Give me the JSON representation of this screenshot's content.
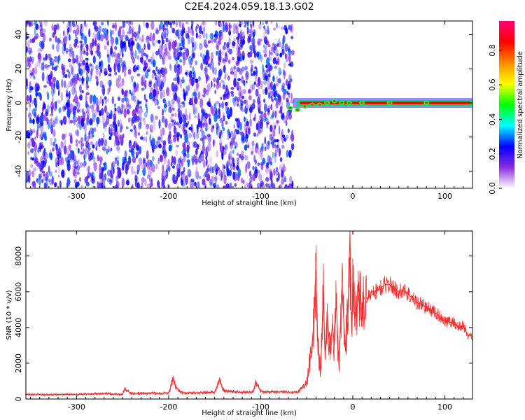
{
  "title": "C2E4.2024.059.18.13.G02",
  "chart_data": [
    {
      "type": "heatmap",
      "panel": "spectrogram",
      "xlabel": "Height of straight line (km)",
      "ylabel": "Frequency (Hz)",
      "xlim": [
        -355,
        130
      ],
      "ylim": [
        -50,
        48
      ],
      "xticks": [
        "-300",
        "-200",
        "-100",
        "0",
        "100"
      ],
      "xtick_values": [
        -300,
        -200,
        -100,
        0,
        100
      ],
      "yticks": [
        "-40",
        "-20",
        "0",
        "20",
        "40"
      ],
      "ytick_values": [
        -40,
        -20,
        0,
        20,
        40
      ],
      "noise_region": {
        "x": [
          -355,
          -65
        ],
        "y": [
          -50,
          48
        ],
        "normalized_amplitude": [
          0.05,
          0.3
        ]
      },
      "signal_band": {
        "x": [
          -65,
          130
        ],
        "center_frequency": 0,
        "normalized_amplitude": 0.85
      },
      "signal_points": [
        {
          "x": -68,
          "y": -3
        },
        {
          "x": -60,
          "y": -4
        },
        {
          "x": -52,
          "y": -2
        },
        {
          "x": -44,
          "y": -1
        },
        {
          "x": -36,
          "y": -1
        },
        {
          "x": -28,
          "y": 0
        },
        {
          "x": -20,
          "y": 1
        },
        {
          "x": -12,
          "y": 0
        },
        {
          "x": -4,
          "y": 0
        },
        {
          "x": 10,
          "y": 0
        },
        {
          "x": 40,
          "y": 0
        },
        {
          "x": 80,
          "y": 0
        },
        {
          "x": 130,
          "y": 0
        }
      ],
      "grid": false,
      "colorbar": {
        "label": "Normalized spectral amplitude",
        "range": [
          0,
          0.97
        ],
        "ticks": [
          "0.0",
          "0.2",
          "0.4",
          "0.6",
          "0.8"
        ],
        "tick_values": [
          0,
          0.2,
          0.4,
          0.6,
          0.8
        ],
        "colors": [
          "#ffffff",
          "#8a2be2",
          "#0000ff",
          "#00ffff",
          "#00ff00",
          "#ffff00",
          "#ff8800",
          "#ff0000",
          "#ff0077"
        ]
      }
    },
    {
      "type": "line",
      "panel": "snr",
      "xlabel": "Height of straight line (km)",
      "ylabel": "SNR (10 * v/v)",
      "xlim": [
        -355,
        130
      ],
      "ylim": [
        0,
        9400
      ],
      "xticks": [
        "-300",
        "-200",
        "-100",
        "0",
        "100"
      ],
      "xtick_values": [
        -300,
        -200,
        -100,
        0,
        100
      ],
      "yticks": [
        "0",
        "2000",
        "4000",
        "6000",
        "8000"
      ],
      "ytick_values": [
        0,
        2000,
        4000,
        6000,
        8000
      ],
      "color": "#f03030",
      "grid": false,
      "series": [
        {
          "x": [
            -355,
            -330,
            -300,
            -270,
            -250,
            -248,
            -240,
            -220,
            -200,
            -195,
            -192,
            -185,
            -170,
            -150,
            -145,
            -140,
            -120,
            -108,
            -105,
            -100,
            -80,
            -60,
            -50,
            -45,
            -42,
            -40,
            -38,
            -35,
            -32,
            -30,
            -28,
            -25,
            -22,
            -20,
            -18,
            -15,
            -12,
            -10,
            -8,
            -5,
            -3,
            -2,
            -1,
            0,
            2,
            5,
            8,
            10,
            12,
            15,
            20,
            25,
            30,
            35,
            40,
            45,
            50,
            55,
            60,
            65,
            70,
            75,
            80,
            85,
            90,
            95,
            100,
            105,
            110,
            115,
            120,
            125,
            130
          ],
          "y": [
            250,
            240,
            260,
            300,
            250,
            550,
            300,
            320,
            330,
            1100,
            650,
            330,
            340,
            380,
            1050,
            450,
            370,
            400,
            950,
            420,
            400,
            380,
            900,
            2600,
            4500,
            7200,
            3200,
            1400,
            6000,
            2200,
            4900,
            2600,
            4200,
            3000,
            5500,
            1700,
            6200,
            4600,
            2700,
            5500,
            9400,
            5200,
            3600,
            6500,
            4500,
            5200,
            6400,
            4600,
            5700,
            5400,
            6000,
            6000,
            6200,
            6400,
            6400,
            6200,
            6000,
            6100,
            5900,
            5600,
            5400,
            5300,
            5100,
            5000,
            4800,
            4600,
            4400,
            4300,
            4300,
            4000,
            4100,
            3600,
            3500
          ]
        }
      ]
    }
  ]
}
